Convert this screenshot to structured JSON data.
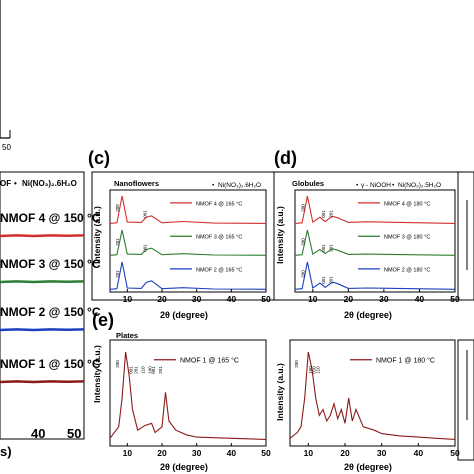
{
  "chart_data": [
    {
      "id": "a",
      "type": "line",
      "xlabel": "",
      "ylabel": "",
      "tick_labels": [
        "50"
      ],
      "series": []
    },
    {
      "id": "b",
      "type": "line",
      "panel_label": "",
      "legend": {
        "entries": [
          "OF",
          "Ni(NO₃)₂.6H₂O"
        ]
      },
      "xlabel": "s)",
      "x_ticks": [
        "40",
        "50"
      ],
      "xlim": [
        0,
        50
      ],
      "series": [
        {
          "name": "NMOF 4 @ 150 °C",
          "color": "#d32f2f",
          "x": [
            0,
            10,
            20,
            30,
            40,
            50
          ],
          "y": [
            0,
            0.1,
            0,
            0.1,
            0.05,
            0.1
          ]
        },
        {
          "name": "NMOF 3 @ 150 °C",
          "color": "#2e7d32",
          "x": [
            0,
            10,
            20,
            30,
            40,
            50
          ],
          "y": [
            0,
            0.1,
            0,
            0.1,
            0.05,
            0.1
          ]
        },
        {
          "name": "NMOF 2 @ 150 °C",
          "color": "#1e3fbf",
          "x": [
            0,
            10,
            20,
            30,
            40,
            50
          ],
          "y": [
            0,
            0.1,
            0,
            0.1,
            0.05,
            0.1
          ]
        },
        {
          "name": "NMOF 1 @ 150 °C",
          "color": "#8b1a1a",
          "x": [
            0,
            10,
            20,
            30,
            40,
            50
          ],
          "y": [
            0,
            0.1,
            0,
            0.1,
            0.05,
            0.1
          ]
        }
      ]
    },
    {
      "id": "c",
      "type": "line",
      "panel_label": "(c)",
      "subtitle": "Nanoflowers",
      "legend": {
        "entries": [
          "Ni(NO₃)₂.6H₂O"
        ]
      },
      "xlabel": "2θ (degree)",
      "ylabel": "Intensity (a.u.)",
      "xlim": [
        5,
        50
      ],
      "x_ticks": [
        10,
        20,
        30,
        40,
        50
      ],
      "peak_labels": [
        "200",
        "001",
        "201",
        "001",
        "201"
      ],
      "series": [
        {
          "name": "NMOF 4 @ 165 °C",
          "color": "#d32f2f",
          "x": [
            5,
            7,
            8.5,
            10,
            14,
            15.5,
            17,
            20,
            26,
            35,
            50
          ],
          "y": [
            0.2,
            0.4,
            9,
            0.6,
            0.5,
            2.2,
            2.6,
            0.4,
            0.8,
            0.3,
            0.2
          ]
        },
        {
          "name": "NMOF 3 @ 165 °C",
          "color": "#2e7d32",
          "x": [
            5,
            7,
            8.5,
            10,
            14,
            15.5,
            17,
            20,
            26,
            35,
            50
          ],
          "y": [
            0.2,
            0.4,
            8,
            0.6,
            0.5,
            2,
            2.4,
            0.4,
            0.7,
            0.3,
            0.2
          ]
        },
        {
          "name": "NMOF 2 @ 165 °C",
          "color": "#1e3fbf",
          "x": [
            5,
            7,
            8.5,
            10,
            14,
            15.5,
            17,
            20,
            26,
            35,
            50
          ],
          "y": [
            0.2,
            0.4,
            8.5,
            0.6,
            0.5,
            2.3,
            2.8,
            0.4,
            0.7,
            0.3,
            0.2
          ]
        }
      ]
    },
    {
      "id": "d",
      "type": "line",
      "panel_label": "(d)",
      "subtitle": "Globules",
      "legend": {
        "entries": [
          "γ - NiOOH",
          "Ni(NO₃)₂.5H₂O"
        ]
      },
      "xlabel": "2θ (degree)",
      "ylabel": "Intensity (a.u.)",
      "xlim": [
        5,
        50
      ],
      "x_ticks": [
        10,
        20,
        30,
        40,
        50
      ],
      "peak_labels": [
        "200",
        "001",
        "201",
        "200",
        "001",
        "201",
        "200",
        "001",
        "201"
      ],
      "series": [
        {
          "name": "NMOF 4 @ 180 °C",
          "color": "#d32f2f",
          "x": [
            5,
            7,
            8.5,
            10,
            12,
            13.5,
            15.5,
            17,
            20,
            25,
            50
          ],
          "y": [
            0.2,
            0.4,
            9,
            0.6,
            2.2,
            0.8,
            2.5,
            2,
            0.5,
            0.7,
            0.2
          ]
        },
        {
          "name": "NMOF 3 @ 180 °C",
          "color": "#2e7d32",
          "x": [
            5,
            7,
            8.5,
            10,
            12,
            13.5,
            15.5,
            17,
            20,
            25,
            50
          ],
          "y": [
            0.2,
            0.4,
            8,
            0.6,
            2,
            0.8,
            2.2,
            1.8,
            0.5,
            0.6,
            0.2
          ]
        },
        {
          "name": "NMOF 2 @ 180 °C",
          "color": "#1e3fbf",
          "x": [
            5,
            7,
            8.5,
            10,
            12,
            13.5,
            15.5,
            17,
            20,
            25,
            50
          ],
          "y": [
            0.2,
            0.4,
            8.5,
            0.6,
            2.1,
            0.8,
            2.4,
            1.9,
            0.5,
            0.6,
            0.2
          ]
        }
      ]
    },
    {
      "id": "e1",
      "type": "line",
      "panel_label": "(e)",
      "subtitle": "Plates",
      "xlabel": "2θ (degree)",
      "ylabel": "Intensity (a.u.)",
      "xlim": [
        5,
        50
      ],
      "x_ticks": [
        10,
        20,
        30,
        40,
        50
      ],
      "peak_labels": [
        "200",
        "001",
        "201",
        "110",
        "100",
        "001",
        "201"
      ],
      "series": [
        {
          "name": "NMOF 1 @ 165 °C",
          "color": "#8b1a1a",
          "x": [
            5,
            7.5,
            8.5,
            9.5,
            10.5,
            11.5,
            13,
            15,
            17,
            18,
            20,
            21,
            22,
            24,
            27,
            30,
            40,
            50
          ],
          "y": [
            0.5,
            1.5,
            4,
            8,
            6,
            3,
            1.2,
            1.6,
            1.8,
            1,
            1.5,
            4.5,
            2,
            1.2,
            0.8,
            0.6,
            0.5,
            0.4
          ]
        }
      ]
    },
    {
      "id": "e2",
      "type": "line",
      "xlabel": "2θ (degree)",
      "ylabel": "Intensity (a.u.)",
      "xlim": [
        5,
        50
      ],
      "x_ticks": [
        10,
        20,
        30,
        40,
        50
      ],
      "peak_labels": [
        "200",
        "100",
        "010",
        "110"
      ],
      "series": [
        {
          "name": "NMOF 1 @ 180 °C",
          "color": "#8b1a1a",
          "x": [
            5,
            7,
            8,
            9,
            10,
            11,
            12,
            13,
            14,
            15,
            16,
            17,
            18,
            19,
            20,
            21,
            22,
            23,
            25,
            28,
            30,
            35,
            40,
            45,
            50
          ],
          "y": [
            0.5,
            1,
            1.5,
            4,
            8,
            6.5,
            4,
            2.5,
            3,
            2,
            2.5,
            3.5,
            2.2,
            3,
            1.8,
            4,
            2,
            3,
            1.5,
            1.2,
            0.9,
            0.7,
            0.6,
            0.5,
            0.4
          ]
        }
      ]
    }
  ]
}
